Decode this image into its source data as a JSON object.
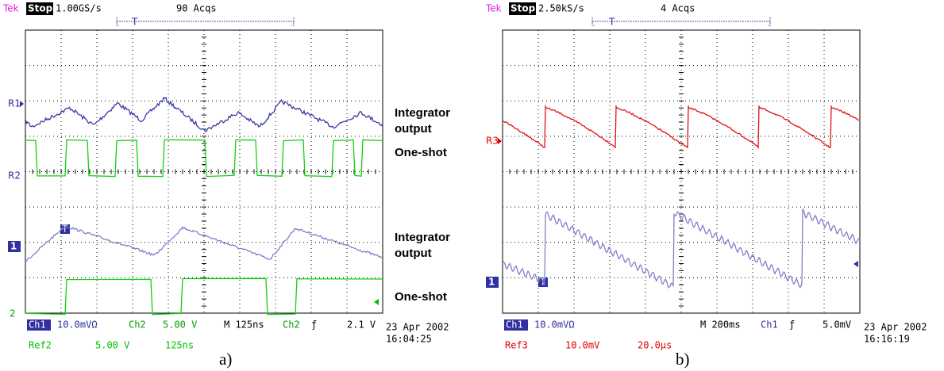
{
  "scope_a": {
    "header": {
      "brand": "Tek",
      "status": "Stop:",
      "rate": "1.00GS/s",
      "acqs": "90 Acqs"
    },
    "trigger_bracket": "T",
    "markers": {
      "r1": "R1",
      "r2": "R2",
      "ch1": "1",
      "ch2": "2",
      "trigger": "T"
    },
    "readout": {
      "ch1": "Ch1",
      "ch1_scale": "10.0mVΩ",
      "ch2": "Ch2",
      "ch2_scale": "5.00 V",
      "time": "M  125ns",
      "trig_src": "Ch2",
      "trig_slope": "ƒ",
      "trig_level": "2.1 V",
      "ref": "Ref2",
      "ref_scale": "5.00 V",
      "ref_time": "125ns"
    },
    "date": "23 Apr 2002",
    "clock": "16:04:25",
    "labels": [
      {
        "line1": "Integrator",
        "line2": "output"
      },
      {
        "line1": "One-shot"
      },
      {
        "line1": "Integrator",
        "line2": "output"
      },
      {
        "line1": "One-shot"
      }
    ],
    "caption": "a)"
  },
  "scope_b": {
    "header": {
      "brand": "Tek",
      "status": "Stop:",
      "rate": "2.50kS/s",
      "acqs": "4 Acqs"
    },
    "trigger_bracket": "T",
    "markers": {
      "r3": "R3",
      "ch1": "1",
      "trigger": "T"
    },
    "readout": {
      "ch1": "Ch1",
      "ch1_scale": "10.0mVΩ",
      "time": "M  200ms",
      "trig_src": "Ch1",
      "trig_slope": "ƒ",
      "trig_level": "5.0mV",
      "ref": "Ref3",
      "ref_scale": "10.0mV",
      "ref_time": "20.0µs"
    },
    "date": "23 Apr 2002",
    "clock": "16:16:19",
    "caption": "b)"
  }
}
